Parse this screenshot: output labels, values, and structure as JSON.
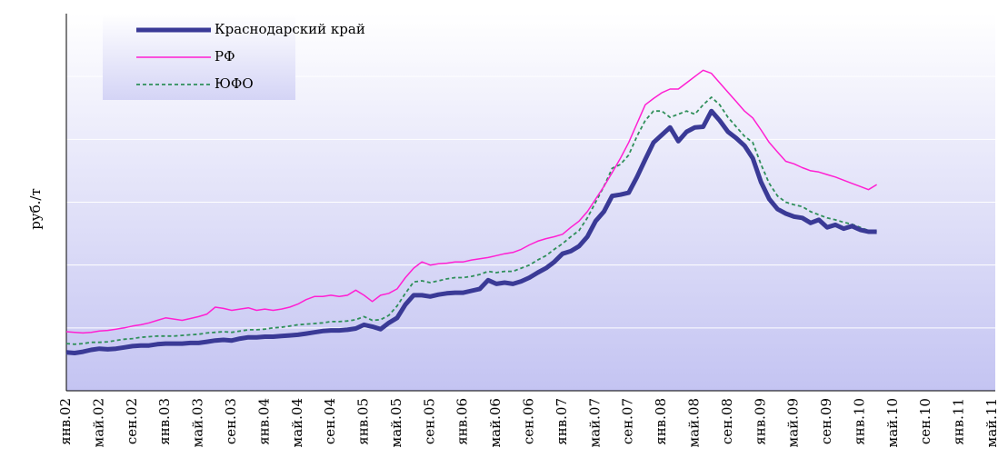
{
  "chart_data": {
    "type": "line",
    "y_label": "руб./т",
    "categories": [
      "янв.02",
      null,
      null,
      null,
      "май.02",
      null,
      null,
      null,
      "сен.02",
      null,
      null,
      null,
      "янв.03",
      null,
      null,
      null,
      "май.03",
      null,
      null,
      null,
      "сен.03",
      null,
      null,
      null,
      "янв.04",
      null,
      null,
      null,
      "май.04",
      null,
      null,
      null,
      "сен.04",
      null,
      null,
      null,
      "янв.05",
      null,
      null,
      null,
      "май.05",
      null,
      null,
      null,
      "сен.05",
      null,
      null,
      null,
      "янв.06",
      null,
      null,
      null,
      "май.06",
      null,
      null,
      null,
      "сен.06",
      null,
      null,
      null,
      "янв.07",
      null,
      null,
      null,
      "май.07",
      null,
      null,
      null,
      "сен.07",
      null,
      null,
      null,
      "янв.08",
      null,
      null,
      null,
      "май.08",
      null,
      null,
      null,
      "сен.08",
      null,
      null,
      null,
      "янв.09",
      null,
      null,
      null,
      "май.09",
      null,
      null,
      null,
      "сен.09",
      null,
      null,
      null,
      "янв.10",
      null,
      null,
      null,
      "май.10",
      null,
      null,
      null,
      "сен.10",
      null,
      null,
      null,
      "янв.11",
      null,
      null,
      null,
      "май.11"
    ],
    "series": [
      {
        "name": "Краснодарский край",
        "color": "#3a3a96",
        "width": 5,
        "dash": false,
        "values": [
          0.61,
          0.6,
          0.62,
          0.65,
          0.67,
          0.66,
          0.67,
          0.69,
          0.71,
          0.72,
          0.72,
          0.74,
          0.75,
          0.75,
          0.75,
          0.76,
          0.76,
          0.78,
          0.8,
          0.81,
          0.8,
          0.83,
          0.85,
          0.85,
          0.86,
          0.86,
          0.87,
          0.88,
          0.89,
          0.91,
          0.93,
          0.95,
          0.96,
          0.96,
          0.97,
          0.99,
          1.05,
          1.02,
          0.98,
          1.08,
          1.16,
          1.37,
          1.52,
          1.52,
          1.5,
          1.53,
          1.55,
          1.56,
          1.56,
          1.59,
          1.62,
          1.76,
          1.7,
          1.72,
          1.7,
          1.74,
          1.8,
          1.88,
          1.95,
          2.05,
          2.18,
          2.22,
          2.3,
          2.45,
          2.7,
          2.85,
          3.1,
          3.12,
          3.15,
          3.4,
          3.68,
          3.95,
          4.07,
          4.19,
          3.97,
          4.12,
          4.19,
          4.2,
          4.45,
          4.3,
          4.12,
          4.02,
          3.9,
          3.7,
          3.32,
          3.05,
          2.89,
          2.82,
          2.77,
          2.75,
          2.67,
          2.72,
          2.6,
          2.64,
          2.58,
          2.62,
          2.56,
          2.53,
          2.53,
          null,
          null,
          null,
          null,
          null,
          null,
          null,
          null,
          null,
          null,
          null,
          null,
          null,
          null
        ]
      },
      {
        "name": "РФ",
        "color": "#ff1fd2",
        "width": 1.5,
        "dash": false,
        "values": [
          0.94,
          0.93,
          0.92,
          0.93,
          0.95,
          0.96,
          0.98,
          1.0,
          1.03,
          1.05,
          1.08,
          1.12,
          1.16,
          1.14,
          1.12,
          1.15,
          1.18,
          1.22,
          1.33,
          1.31,
          1.28,
          1.3,
          1.32,
          1.28,
          1.3,
          1.28,
          1.3,
          1.33,
          1.38,
          1.45,
          1.5,
          1.5,
          1.52,
          1.5,
          1.52,
          1.6,
          1.52,
          1.42,
          1.52,
          1.55,
          1.62,
          1.8,
          1.95,
          2.05,
          2.0,
          2.02,
          2.03,
          2.05,
          2.05,
          2.08,
          2.1,
          2.12,
          2.15,
          2.18,
          2.2,
          2.25,
          2.32,
          2.38,
          2.42,
          2.45,
          2.49,
          2.6,
          2.7,
          2.85,
          3.05,
          3.25,
          3.47,
          3.7,
          3.95,
          4.25,
          4.55,
          4.65,
          4.74,
          4.8,
          4.8,
          4.9,
          5.0,
          5.1,
          5.05,
          4.9,
          4.75,
          4.6,
          4.45,
          4.34,
          4.15,
          3.95,
          3.8,
          3.65,
          3.61,
          3.55,
          3.5,
          3.48,
          3.44,
          3.4,
          3.35,
          3.3,
          3.25,
          3.2,
          3.28,
          null,
          null,
          null,
          null,
          null,
          null,
          null,
          null,
          null,
          null,
          null,
          null,
          null,
          null
        ]
      },
      {
        "name": "ЮФО",
        "color": "#2f8f5a",
        "width": 1.8,
        "dash": true,
        "values": [
          0.75,
          0.74,
          0.75,
          0.77,
          0.77,
          0.78,
          0.8,
          0.82,
          0.83,
          0.85,
          0.86,
          0.87,
          0.87,
          0.87,
          0.88,
          0.89,
          0.9,
          0.92,
          0.93,
          0.94,
          0.93,
          0.95,
          0.97,
          0.97,
          0.98,
          1.0,
          1.01,
          1.03,
          1.05,
          1.06,
          1.07,
          1.08,
          1.1,
          1.1,
          1.11,
          1.13,
          1.18,
          1.12,
          1.13,
          1.2,
          1.35,
          1.55,
          1.73,
          1.75,
          1.72,
          1.75,
          1.78,
          1.8,
          1.8,
          1.82,
          1.85,
          1.9,
          1.88,
          1.9,
          1.9,
          1.95,
          2.0,
          2.08,
          2.15,
          2.25,
          2.34,
          2.45,
          2.55,
          2.75,
          3.0,
          3.25,
          3.54,
          3.6,
          3.75,
          4.05,
          4.3,
          4.45,
          4.45,
          4.35,
          4.4,
          4.45,
          4.4,
          4.55,
          4.67,
          4.55,
          4.35,
          4.2,
          4.05,
          3.95,
          3.6,
          3.3,
          3.1,
          3.0,
          2.96,
          2.93,
          2.85,
          2.8,
          2.75,
          2.72,
          2.68,
          2.65,
          2.6,
          2.55,
          2.53,
          null,
          null,
          null,
          null,
          null,
          null,
          null,
          null,
          null,
          null,
          null,
          null,
          null,
          null
        ]
      }
    ],
    "ylim": [
      0,
      6
    ],
    "yticks": [
      1,
      2,
      3,
      4,
      5
    ],
    "grid": true,
    "legend": "upper left"
  }
}
